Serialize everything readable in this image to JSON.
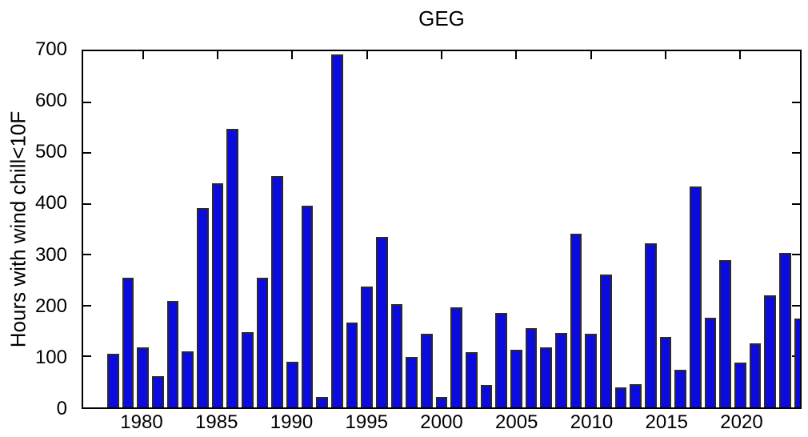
{
  "figure": {
    "background": "#ffffff",
    "axis_color": "#000000"
  },
  "chart_data": {
    "type": "bar",
    "title": "GEG",
    "xlabel": "",
    "ylabel": "Hours with wind chill<10F",
    "x": [
      1978,
      1979,
      1980,
      1981,
      1982,
      1983,
      1984,
      1985,
      1986,
      1987,
      1988,
      1989,
      1990,
      1991,
      1992,
      1993,
      1994,
      1995,
      1996,
      1997,
      1998,
      1999,
      2000,
      2001,
      2002,
      2003,
      2004,
      2005,
      2006,
      2007,
      2008,
      2009,
      2010,
      2011,
      2012,
      2013,
      2014,
      2015,
      2016,
      2017,
      2018,
      2019,
      2020,
      2021,
      2022,
      2023,
      2024
    ],
    "values": [
      106,
      255,
      118,
      61,
      209,
      110,
      392,
      440,
      548,
      148,
      255,
      455,
      89,
      396,
      20,
      693,
      167,
      237,
      335,
      203,
      99,
      145,
      21,
      197,
      108,
      44,
      186,
      113,
      156,
      118,
      146,
      341,
      144,
      261,
      39,
      45,
      322,
      139,
      74,
      434,
      176,
      289,
      88,
      126,
      221,
      303,
      174
    ],
    "xlim": [
      1976,
      2024
    ],
    "ylim": [
      0,
      700
    ],
    "yticks": [
      0,
      100,
      200,
      300,
      400,
      500,
      600,
      700
    ],
    "xticks": [
      1980,
      1985,
      1990,
      1995,
      2000,
      2005,
      2010,
      2015,
      2020
    ],
    "bar_width": 0.8,
    "bar_fill": "#0b0be0",
    "bar_edge": "#2a2a2a",
    "grid": false,
    "legend_position": "none"
  }
}
